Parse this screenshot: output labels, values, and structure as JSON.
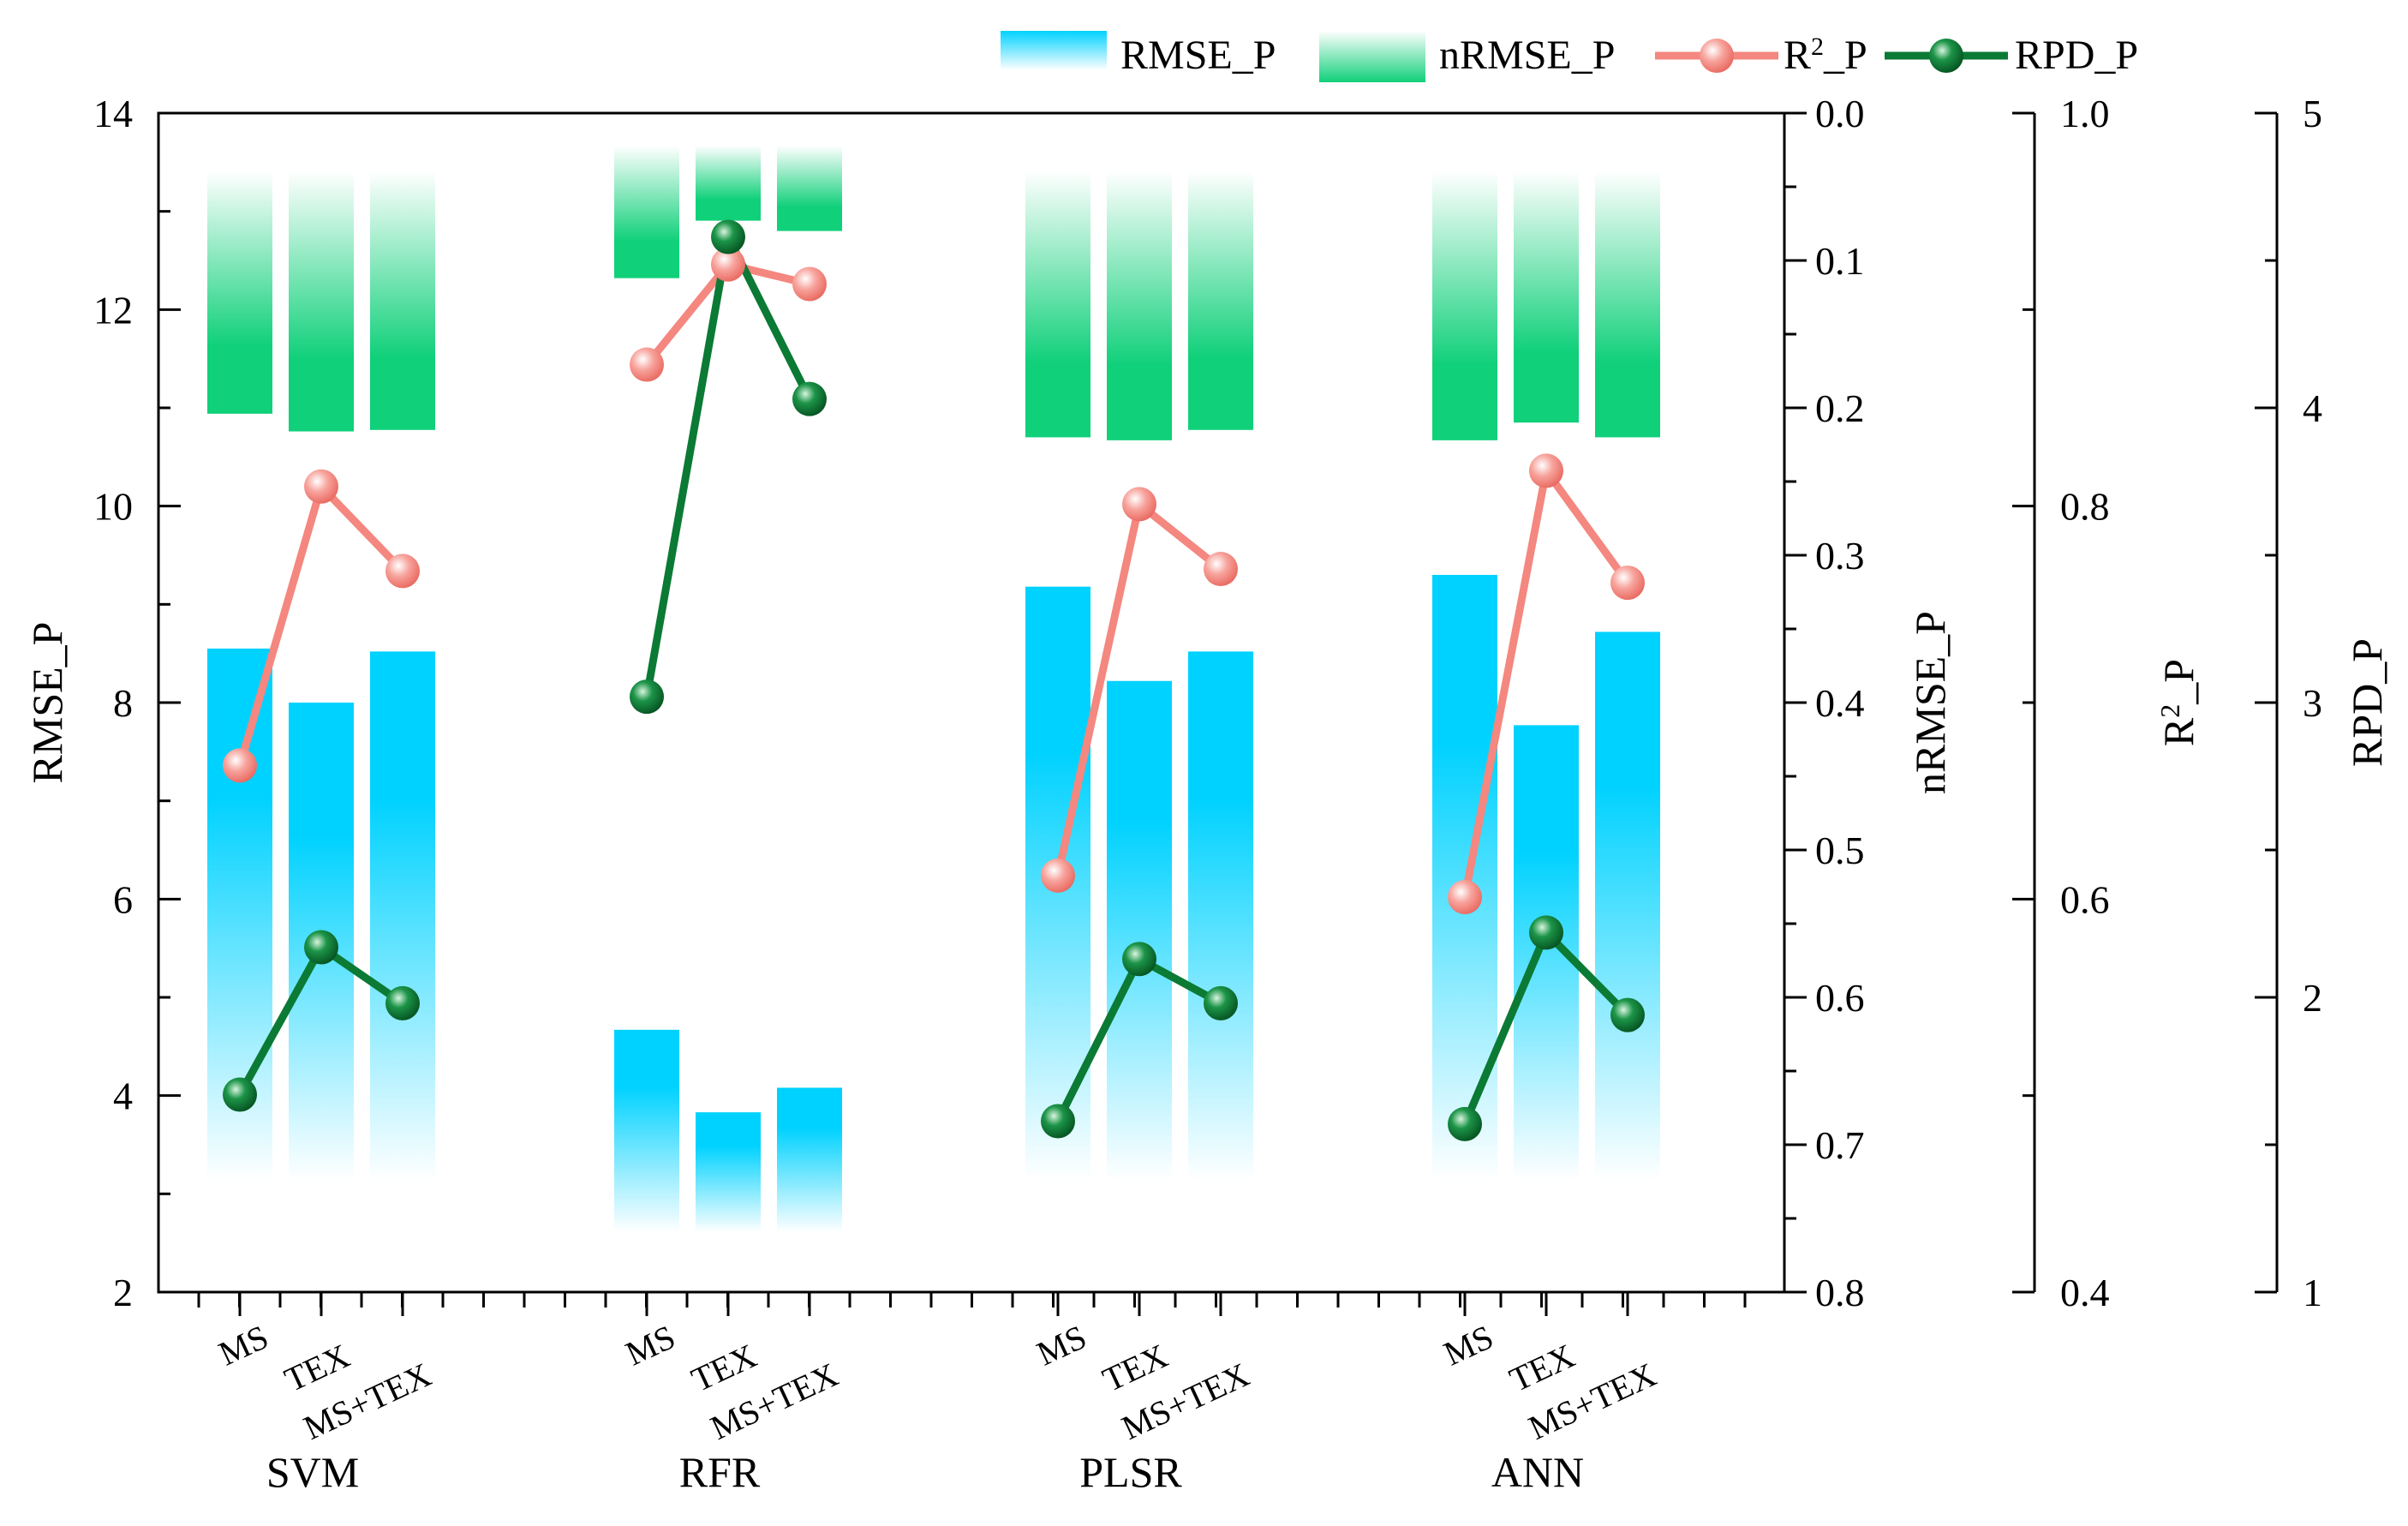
{
  "chart_data": {
    "type": "bar+line (multi-axis)",
    "groups": [
      "SVM",
      "RFR",
      "PLSR",
      "ANN"
    ],
    "categories": [
      "MS",
      "TEX",
      "MS+TEX"
    ],
    "axes": {
      "rmse": {
        "label": "RMSE_P",
        "range": [
          2,
          14
        ],
        "ticks": [
          "2",
          "4",
          "6",
          "8",
          "10",
          "12",
          "14"
        ],
        "tick_values": [
          2,
          4,
          6,
          8,
          10,
          12,
          14
        ]
      },
      "nrmse": {
        "label": "nRMSE_P",
        "range": [
          0.0,
          0.8
        ],
        "inverted": true,
        "ticks": [
          "0.0",
          "0.1",
          "0.2",
          "0.3",
          "0.4",
          "0.5",
          "0.6",
          "0.7",
          "0.8"
        ],
        "tick_values": [
          0,
          0.1,
          0.2,
          0.3,
          0.4,
          0.5,
          0.6,
          0.7,
          0.8
        ]
      },
      "r2": {
        "label": "R",
        "label_sup": "2",
        "label_suffix": "_P",
        "range": [
          0.4,
          1.0
        ],
        "ticks": [
          "0.4",
          "0.6",
          "0.8",
          "1.0"
        ],
        "tick_values": [
          0.4,
          0.6,
          0.8,
          1.0
        ]
      },
      "rpd": {
        "label": "RPD_P",
        "range": [
          1,
          5
        ],
        "ticks": [
          "1",
          "2",
          "3",
          "4",
          "5"
        ],
        "tick_values": [
          1,
          2,
          3,
          4,
          5
        ]
      }
    },
    "series": [
      {
        "name": "RMSE_P",
        "kind": "bar",
        "axis": "rmse",
        "values": [
          [
            8.55,
            8.0,
            8.52
          ],
          [
            4.67,
            3.83,
            4.08
          ],
          [
            9.18,
            8.22,
            8.52
          ],
          [
            9.3,
            7.77,
            8.72
          ]
        ]
      },
      {
        "name": "nRMSE_P",
        "kind": "bar",
        "axis": "nrmse",
        "values": [
          [
            0.204,
            0.216,
            0.215
          ],
          [
            0.112,
            0.073,
            0.08
          ],
          [
            0.22,
            0.222,
            0.215
          ],
          [
            0.222,
            0.21,
            0.22
          ]
        ]
      },
      {
        "name": "R2_P",
        "label_main": "R",
        "label_sup": "2",
        "label_suffix": "_P",
        "kind": "line",
        "axis": "r2",
        "values": [
          [
            0.668,
            0.81,
            0.767
          ],
          [
            0.872,
            0.923,
            0.913
          ],
          [
            0.612,
            0.801,
            0.768
          ],
          [
            0.601,
            0.818,
            0.761
          ]
        ]
      },
      {
        "name": "RPD_P",
        "kind": "line",
        "axis": "rpd",
        "values": [
          [
            1.67,
            2.17,
            1.98
          ],
          [
            3.02,
            4.58,
            4.03
          ],
          [
            1.58,
            2.13,
            1.98
          ],
          [
            1.57,
            2.22,
            1.94
          ]
        ]
      }
    ],
    "colors": {
      "rmse": "#00d2ff",
      "nrmse": "#10d07a",
      "r2": "#f4877f",
      "rpd": "#0b7a34"
    },
    "legend": {
      "position": "top-right"
    }
  }
}
